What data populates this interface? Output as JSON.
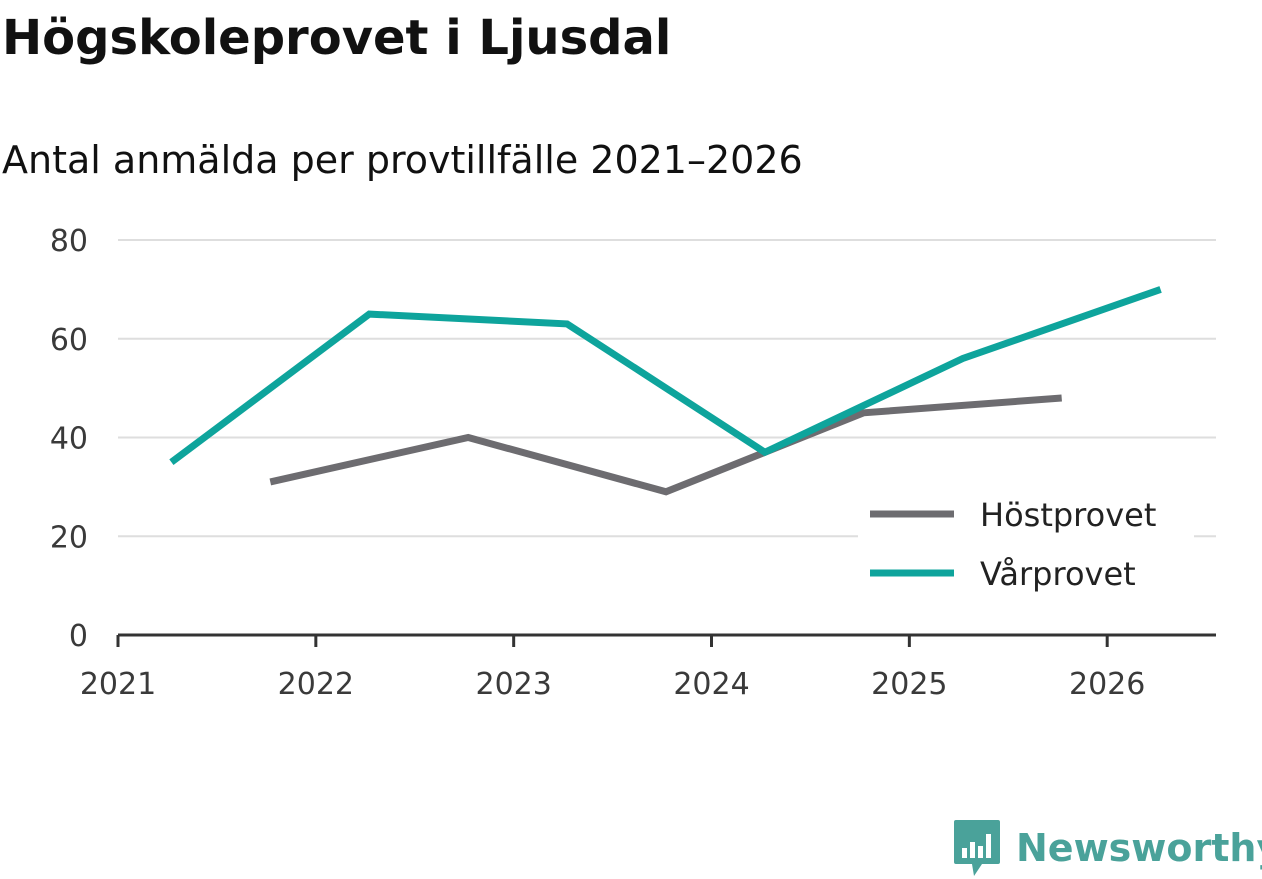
{
  "title": "Högskoleprovet i Ljusdal",
  "subtitle": "Antal anmälda per provtillfälle 2021–2026",
  "brand": {
    "name": "Newsworthy",
    "color": "#4aa29a",
    "icon": "newsworthy-logo-icon"
  },
  "chart_data": {
    "type": "line",
    "title": "Högskoleprovet i Ljusdal",
    "subtitle": "Antal anmälda per provtillfälle 2021–2026",
    "xlabel": "",
    "ylabel": "",
    "xlim": [
      2021,
      2026.55
    ],
    "ylim": [
      0,
      80
    ],
    "grid": true,
    "legend_position": "bottom-right",
    "x_ticks": [
      2021,
      2022,
      2023,
      2024,
      2025,
      2026
    ],
    "x_tick_labels": [
      "2021",
      "2022",
      "2023",
      "2024",
      "2025",
      "2026"
    ],
    "y_ticks": [
      0,
      20,
      40,
      60,
      80
    ],
    "y_tick_labels": [
      "0",
      "20",
      "40",
      "60",
      "80"
    ],
    "series": [
      {
        "name": "Höstprovet",
        "color": "#6d6c70",
        "x": [
          2021.77,
          2022.77,
          2023.77,
          2024.77,
          2025.77
        ],
        "values": [
          31,
          40,
          29,
          45,
          48
        ]
      },
      {
        "name": "Vårprovet",
        "color": "#0ea49c",
        "x": [
          2021.27,
          2022.27,
          2023.27,
          2024.27,
          2025.27,
          2026.27
        ],
        "values": [
          35,
          65,
          63,
          37,
          56,
          70
        ]
      }
    ]
  }
}
